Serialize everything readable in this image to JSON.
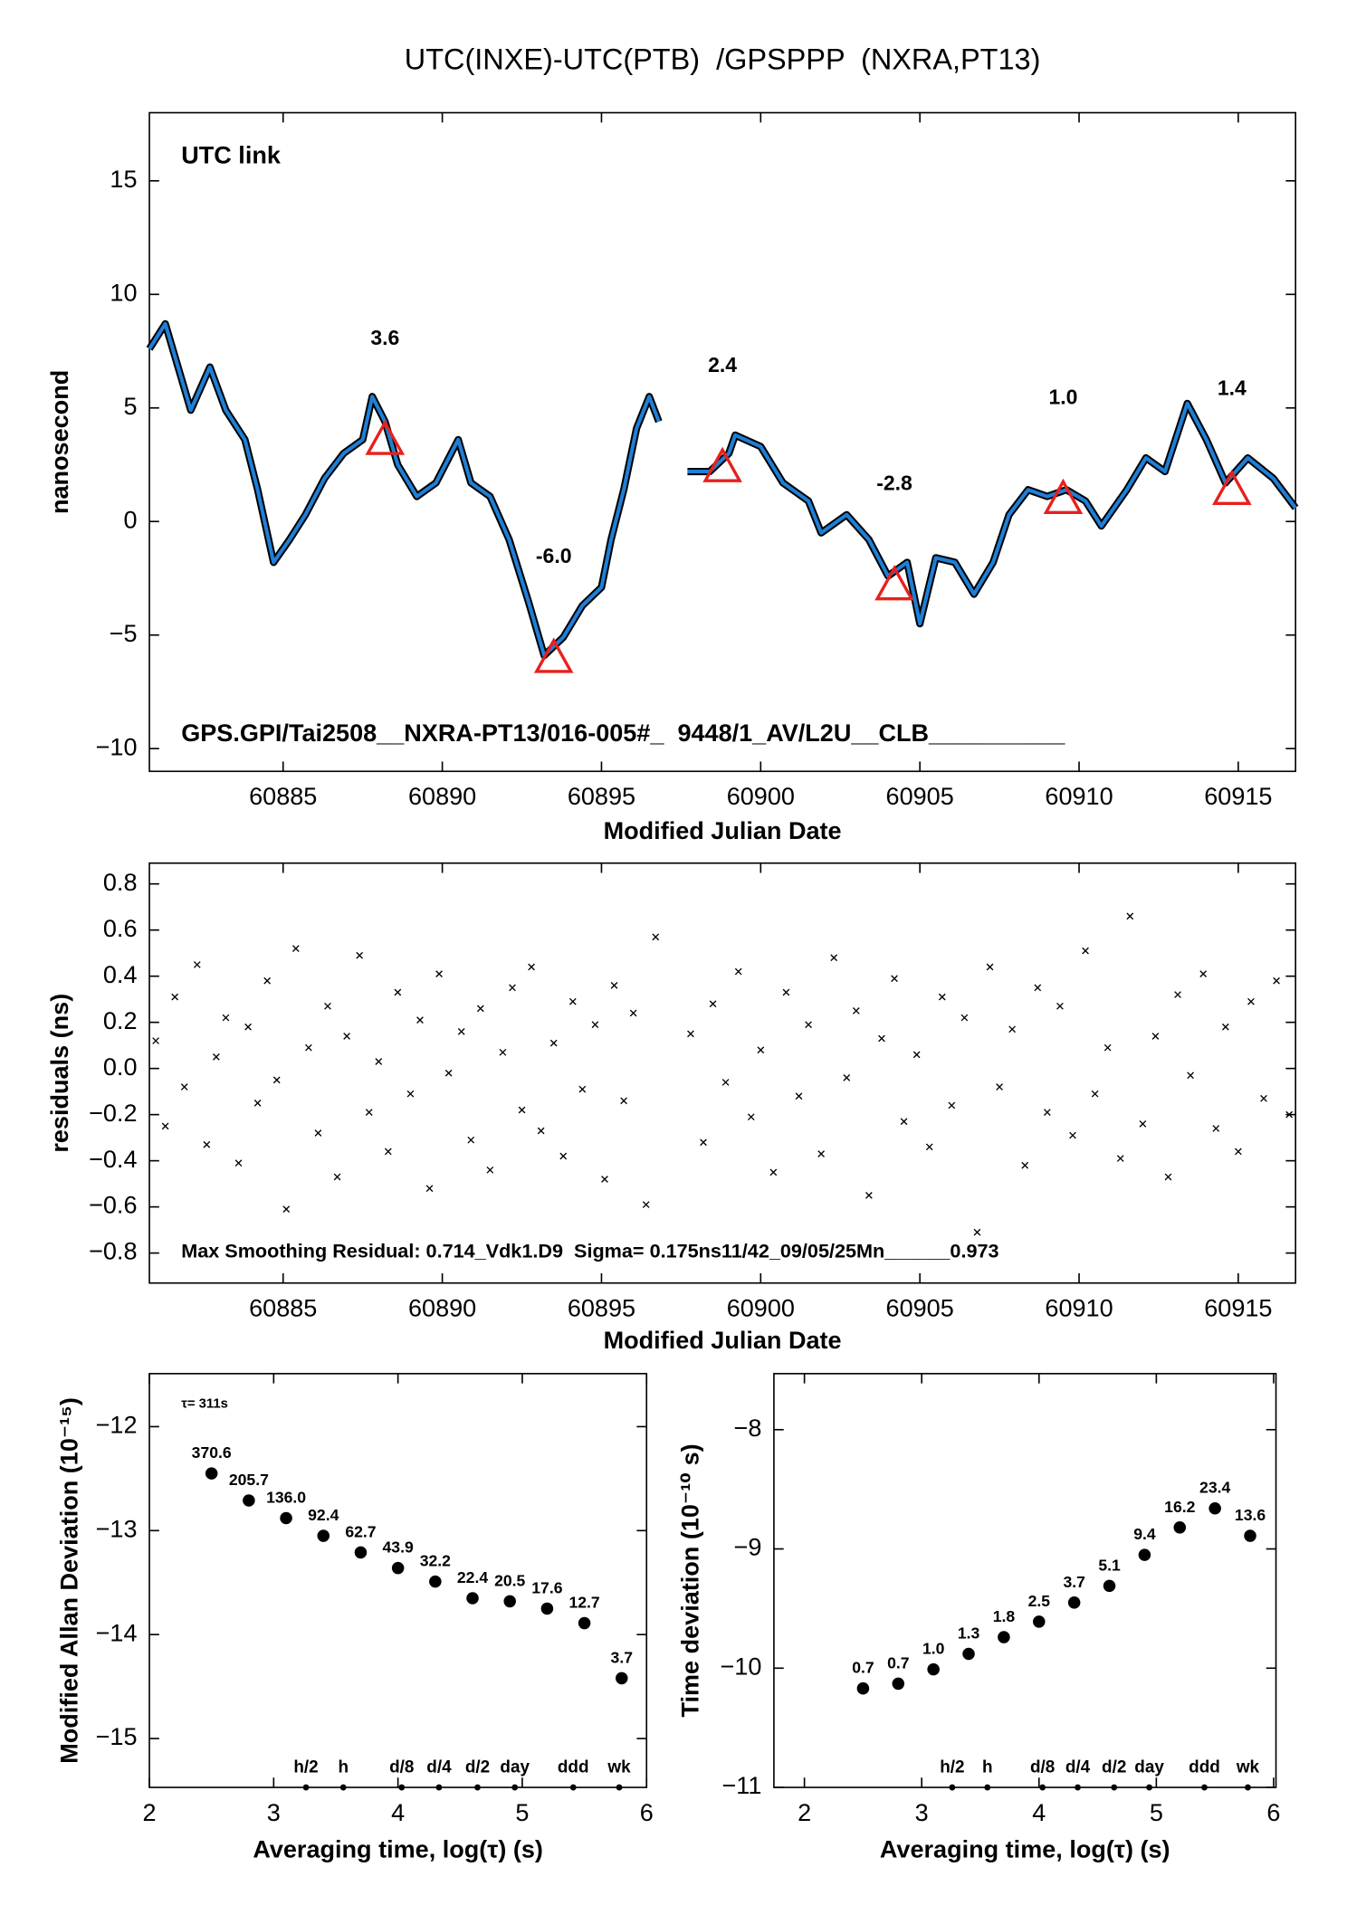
{
  "chart_data": [
    {
      "type": "line",
      "title": "UTC(INXE)-UTC(PTB)  /GPSPPP  (NXRA,PT13)",
      "annotations": [
        "UTC link",
        "GPS.GPI/Tai2508__NXRA-PT13/016-005#_  9448/1_AV/L2U__CLB__________"
      ],
      "annotation_color": "#6b8e23",
      "xlabel": "Modified Julian Date",
      "ylabel": "nanosecond",
      "color": "#1f7fd6",
      "noise_color": "#000000",
      "x": [
        60880.8,
        60881.3,
        60881.7,
        60882.1,
        60882.7,
        60883.2,
        60883.8,
        60884.2,
        60884.7,
        60885.2,
        60885.7,
        60886.3,
        60886.9,
        60887.5,
        60887.8,
        60888.2,
        60888.6,
        60889.2,
        60889.8,
        60890.5,
        60890.9,
        60891.5,
        60892.1,
        60892.7,
        60893.2,
        60893.8,
        60894.4,
        60895.0,
        60895.3,
        60895.7,
        60896.1,
        60896.5,
        60896.8,
        60897.2,
        60897.7,
        60898.4,
        60899.0,
        60899.2,
        60900.0,
        60900.7,
        60901.5,
        60901.9,
        60902.7,
        60903.4,
        60904.0,
        60904.6,
        60905.0,
        60905.5,
        60906.1,
        60906.7,
        60907.3,
        60907.8,
        60908.4,
        60909.0,
        60909.6,
        60910.2,
        60910.7,
        60911.5,
        60912.1,
        60912.7,
        60913.4,
        60914.0,
        60914.6,
        60915.3,
        60916.1,
        60916.8
      ],
      "values": [
        7.6,
        8.7,
        6.8,
        4.9,
        6.8,
        4.9,
        3.6,
        1.4,
        -1.8,
        -0.8,
        0.3,
        1.9,
        3.0,
        3.6,
        5.5,
        4.4,
        2.5,
        1.1,
        1.7,
        3.6,
        1.7,
        1.1,
        -0.8,
        -3.5,
        -5.9,
        -5.1,
        -3.7,
        -2.9,
        -0.8,
        1.4,
        4.1,
        5.5,
        4.4,
        null,
        2.2,
        2.2,
        3.0,
        3.8,
        3.3,
        1.7,
        0.9,
        -0.5,
        0.3,
        -0.8,
        -2.4,
        -1.8,
        -4.5,
        -1.6,
        -1.8,
        -3.2,
        -1.8,
        0.3,
        1.4,
        1.1,
        1.4,
        0.9,
        -0.2,
        1.4,
        2.8,
        2.2,
        5.2,
        3.6,
        1.7,
        2.8,
        1.9,
        0.6
      ],
      "triangles": {
        "color": "#e8201e",
        "x": [
          60888.2,
          60893.5,
          60898.8,
          60904.2,
          60909.5,
          60914.8
        ],
        "values": [
          3.6,
          -6.0,
          2.4,
          -2.8,
          1.0,
          1.4
        ],
        "value_labels": [
          "3.6",
          "-6.0",
          "2.4",
          "-2.8",
          "1.0",
          "1.4"
        ]
      },
      "xlim": [
        60880.8,
        60916.8
      ],
      "ylim": [
        -11,
        18
      ],
      "xticks": [
        60885,
        60890,
        60895,
        60900,
        60905,
        60910,
        60915
      ],
      "yticks": [
        {
          "value": -10,
          "label": "−10"
        },
        {
          "value": -5,
          "label": "−5"
        },
        0,
        5,
        10,
        15
      ]
    },
    {
      "type": "scatter",
      "xlabel": "Modified Julian Date",
      "ylabel": "residuals (ns)",
      "annotations": [
        "Max Smoothing Residual: 0.714_Vdk1.D9  Sigma= 0.175ns11/42_09/05/25Mn______0.973"
      ],
      "color": "#000000",
      "x": [
        60881.0,
        60881.3,
        60881.6,
        60881.9,
        60882.3,
        60882.6,
        60882.9,
        60883.2,
        60883.6,
        60883.9,
        60884.2,
        60884.5,
        60884.8,
        60885.1,
        60885.4,
        60885.8,
        60886.1,
        60886.4,
        60886.7,
        60887.0,
        60887.4,
        60887.7,
        60888.0,
        60888.3,
        60888.6,
        60889.0,
        60889.3,
        60889.6,
        60889.9,
        60890.2,
        60890.6,
        60890.9,
        60891.2,
        60891.5,
        60891.9,
        60892.2,
        60892.5,
        60892.8,
        60893.1,
        60893.5,
        60893.8,
        60894.1,
        60894.4,
        60894.8,
        60895.1,
        60895.4,
        60895.7,
        60896.0,
        60896.4,
        60896.7,
        60897.8,
        60898.2,
        60898.5,
        60898.9,
        60899.3,
        60899.7,
        60900.0,
        60900.4,
        60900.8,
        60901.2,
        60901.5,
        60901.9,
        60902.3,
        60902.7,
        60903.0,
        60903.4,
        60903.8,
        60904.2,
        60904.5,
        60904.9,
        60905.3,
        60905.7,
        60906.0,
        60906.4,
        60906.8,
        60907.2,
        60907.5,
        60907.9,
        60908.3,
        60908.7,
        60909.0,
        60909.4,
        60909.8,
        60910.2,
        60910.5,
        60910.9,
        60911.3,
        60911.6,
        60912.0,
        60912.4,
        60912.8,
        60913.1,
        60913.5,
        60913.9,
        60914.3,
        60914.6,
        60915.0,
        60915.4,
        60915.8,
        60916.2,
        60916.6
      ],
      "values": [
        0.12,
        -0.25,
        0.31,
        -0.08,
        0.45,
        -0.33,
        0.05,
        0.22,
        -0.41,
        0.18,
        -0.15,
        0.38,
        -0.05,
        -0.61,
        0.52,
        0.09,
        -0.28,
        0.27,
        -0.47,
        0.14,
        0.49,
        -0.19,
        0.03,
        -0.36,
        0.33,
        -0.11,
        0.21,
        -0.52,
        0.41,
        -0.02,
        0.16,
        -0.31,
        0.26,
        -0.44,
        0.07,
        0.35,
        -0.18,
        0.44,
        -0.27,
        0.11,
        -0.38,
        0.29,
        -0.09,
        0.19,
        -0.48,
        0.36,
        -0.14,
        0.24,
        -0.59,
        0.57,
        0.15,
        -0.32,
        0.28,
        -0.06,
        0.42,
        -0.21,
        0.08,
        -0.45,
        0.33,
        -0.12,
        0.19,
        -0.37,
        0.48,
        -0.04,
        0.25,
        -0.55,
        0.13,
        0.39,
        -0.23,
        0.06,
        -0.34,
        0.31,
        -0.16,
        0.22,
        -0.71,
        0.44,
        -0.08,
        0.17,
        -0.42,
        0.35,
        -0.19,
        0.27,
        -0.29,
        0.51,
        -0.11,
        0.09,
        -0.39,
        0.66,
        -0.24,
        0.14,
        -0.47,
        0.32,
        -0.03,
        0.41,
        -0.26,
        0.18,
        -0.36,
        0.29,
        -0.13,
        0.38,
        -0.2
      ],
      "xlim": [
        60880.8,
        60916.8
      ],
      "ylim": [
        -0.93,
        0.89
      ],
      "xticks": [
        60885,
        60890,
        60895,
        60900,
        60905,
        60910,
        60915
      ],
      "yticks": [
        {
          "value": -0.8,
          "label": "−0.8"
        },
        {
          "value": -0.6,
          "label": "−0.6"
        },
        {
          "value": -0.4,
          "label": "−0.4"
        },
        {
          "value": -0.2,
          "label": "−0.2"
        },
        {
          "value": 0,
          "label": "0.0"
        },
        0.2,
        0.4,
        0.6,
        0.8
      ]
    },
    {
      "type": "dots",
      "xlabel": "Averaging time, log(τ) (s)",
      "ylabel": "Modified Allan Deviation (10⁻¹⁵)",
      "annotations": [
        "τ= 311s"
      ],
      "color": "#000000",
      "label_color": "#e8201e",
      "x": [
        2.5,
        2.8,
        3.1,
        3.4,
        3.7,
        4.0,
        4.3,
        4.6,
        4.9,
        5.2,
        5.5,
        5.8
      ],
      "values": [
        -12.45,
        -12.71,
        -12.88,
        -13.05,
        -13.21,
        -13.36,
        -13.49,
        -13.65,
        -13.68,
        -13.75,
        -13.89,
        -14.42
      ],
      "point_labels": [
        "370.6",
        "205.7",
        "136.0",
        "92.4",
        "62.7",
        "43.9",
        "32.2",
        "22.4",
        "20.5",
        "17.6",
        "12.7",
        "3.7"
      ],
      "markers": {
        "labels": [
          "h/2",
          "h",
          "d/8",
          "d/4",
          "d/2",
          "day",
          "ddd",
          "wk"
        ],
        "x": [
          3.26,
          3.56,
          4.03,
          4.33,
          4.64,
          4.94,
          5.41,
          5.78
        ]
      },
      "xlim": [
        2,
        6
      ],
      "ylim": [
        -15.47,
        -11.49
      ],
      "xticks": [
        2,
        3,
        4,
        5,
        6
      ],
      "yticks": [
        {
          "value": -15,
          "label": "−15"
        },
        {
          "value": -14,
          "label": "−14"
        },
        {
          "value": -13,
          "label": "−13"
        },
        {
          "value": -12,
          "label": "−12"
        }
      ]
    },
    {
      "type": "dots",
      "xlabel": "Averaging time, log(τ) (s)",
      "ylabel": "Time deviation (10⁻¹⁰ s)",
      "color": "#000000",
      "label_color": "#e8201e",
      "x": [
        2.5,
        2.8,
        3.1,
        3.4,
        3.7,
        4.0,
        4.3,
        4.6,
        4.9,
        5.2,
        5.5,
        5.8
      ],
      "values": [
        -10.17,
        -10.13,
        -10.01,
        -9.88,
        -9.74,
        -9.61,
        -9.45,
        -9.31,
        -9.05,
        -8.82,
        -8.66,
        -8.89
      ],
      "point_labels": [
        "0.7",
        "0.7",
        "1.0",
        "1.3",
        "1.8",
        "2.5",
        "3.7",
        "5.1",
        "9.4",
        "16.2",
        "23.4",
        "13.6"
      ],
      "markers": {
        "labels": [
          "h/2",
          "h",
          "d/8",
          "d/4",
          "d/2",
          "day",
          "ddd",
          "wk"
        ],
        "x": [
          3.26,
          3.56,
          4.03,
          4.33,
          4.64,
          4.94,
          5.41,
          5.78
        ]
      },
      "xlim": [
        1.74,
        6.02
      ],
      "ylim": [
        -11,
        -7.53
      ],
      "xticks": [
        2,
        3,
        4,
        5,
        6
      ],
      "yticks": [
        {
          "value": -11,
          "label": "−11"
        },
        {
          "value": -10,
          "label": "−10"
        },
        {
          "value": -9,
          "label": "−9"
        },
        {
          "value": -8,
          "label": "−8"
        }
      ]
    }
  ]
}
